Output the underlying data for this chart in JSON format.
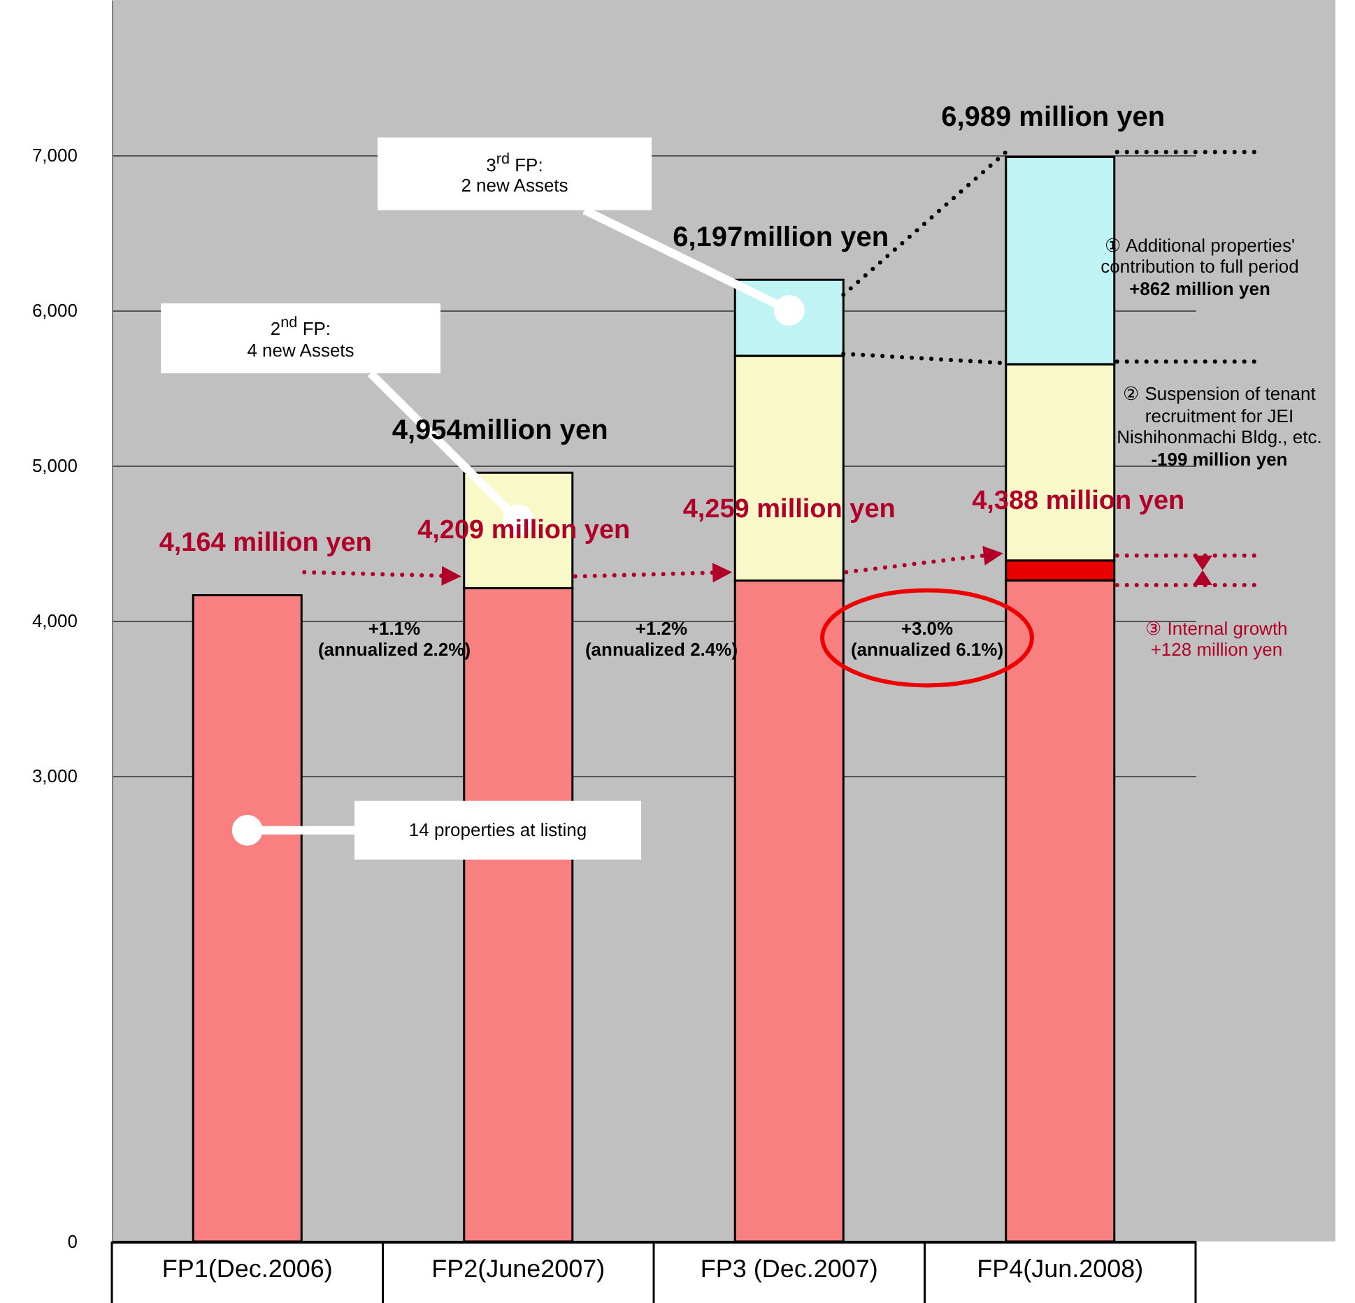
{
  "chart_data": {
    "type": "bar",
    "stacked": true,
    "categories": [
      "FP1(Dec.2006)",
      "FP2(June2007)",
      "FP3 (Dec.2007)",
      "FP4(Jun.2008)"
    ],
    "series": [
      {
        "color": "#f88080",
        "values": [
          4164,
          4209,
          4259,
          4260
        ]
      },
      {
        "color": "#e80000",
        "values": [
          null,
          null,
          null,
          128
        ]
      },
      {
        "color": "#f8f8c8",
        "values": [
          null,
          745,
          1448,
          1265
        ]
      },
      {
        "color": "#c0f4f4",
        "values": [
          null,
          null,
          490,
          1336
        ]
      }
    ],
    "ylim": [
      0,
      8000
    ],
    "yticks": [
      0,
      {
        "value": 3000,
        "label": "3,000"
      },
      {
        "value": 4000,
        "label": "4,000"
      },
      {
        "value": 5000,
        "label": "5,000"
      },
      {
        "value": 6000,
        "label": "6,000"
      },
      {
        "value": 7000,
        "label": "7,000"
      }
    ],
    "grid": "y",
    "annotations": [
      {
        "text": "4,164 million yen",
        "x": "FP1(Dec.2006)",
        "y": 4164
      },
      {
        "text": "4,209 million yen",
        "x": "FP2(June2007)",
        "y": 4209
      },
      {
        "text": "4,954million yen",
        "x": "FP2(June2007)",
        "y": 4954
      },
      {
        "text": "4,259 million yen",
        "x": "FP3 (Dec.2007)",
        "y": 4259
      },
      {
        "text": "6,197million yen",
        "x": "FP3 (Dec.2007)",
        "y": 6197
      },
      {
        "text": "4,388 million yen",
        "x": "FP4(Jun.2008)",
        "y": 4388
      },
      {
        "text": "6,989 million yen",
        "x": "FP4(Jun.2008)",
        "y": 6989
      },
      "+1.1%\n(annualized 2.2%)",
      "+1.2%\n(annualized 2.4%)",
      "+3.0%\n(annualized 6.1%)",
      "① Additional properties'\ncontribution to full period\n+862 million yen",
      "② Suspension of tenant\nrecruitment for JEI\nNishihonmachi Bldg., etc.\n-199 million yen",
      "③ Internal growth\n+128 million yen",
      "2$^{nd}$ FP:\n4 new Assets",
      "3$^{rd}$ FP:\n2 new Assets",
      "14 properties at listing"
    ]
  }
}
